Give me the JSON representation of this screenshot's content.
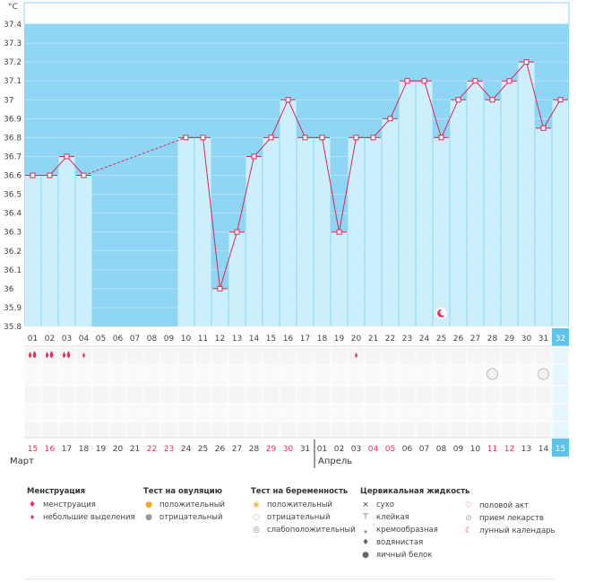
{
  "unit_label": "°C",
  "chart_data": {
    "type": "line",
    "title": "",
    "ylabel": "°C",
    "ylim": [
      35.8,
      37.4
    ],
    "yticks": [
      "35.8",
      "35.9",
      "36",
      "36.1",
      "36.2",
      "36.3",
      "36.4",
      "36.5",
      "36.6",
      "36.7",
      "36.8",
      "36.9",
      "37",
      "37.1",
      "37.2",
      "37.3",
      "37.4"
    ],
    "cycle_days": [
      "01",
      "02",
      "03",
      "04",
      "05",
      "06",
      "07",
      "08",
      "09",
      "10",
      "11",
      "12",
      "13",
      "14",
      "15",
      "16",
      "17",
      "18",
      "19",
      "20",
      "21",
      "22",
      "23",
      "24",
      "25",
      "26",
      "27",
      "28",
      "29",
      "30",
      "31",
      "32"
    ],
    "dates": [
      "15",
      "16",
      "17",
      "18",
      "19",
      "20",
      "21",
      "22",
      "23",
      "24",
      "25",
      "26",
      "27",
      "28",
      "29",
      "30",
      "31",
      "01",
      "02",
      "03",
      "04",
      "05",
      "06",
      "07",
      "08",
      "09",
      "10",
      "11",
      "12",
      "13",
      "14",
      "15"
    ],
    "weekend_dates": [
      0,
      1,
      7,
      8,
      14,
      15,
      20,
      21,
      27,
      28
    ],
    "values": [
      36.6,
      36.6,
      36.7,
      36.6,
      null,
      null,
      null,
      null,
      null,
      36.8,
      36.8,
      36.0,
      36.3,
      36.7,
      36.8,
      37.0,
      36.8,
      36.8,
      36.3,
      36.8,
      36.8,
      36.9,
      37.1,
      37.1,
      36.8,
      37.0,
      37.1,
      37.0,
      37.1,
      37.2,
      36.85,
      37.0
    ],
    "current_day_index": 31,
    "menstruation": [
      1,
      1,
      1,
      2,
      0,
      0,
      0,
      0,
      0,
      0,
      0,
      0,
      0,
      0,
      0,
      0,
      0,
      0,
      0,
      2,
      0,
      0,
      0,
      0,
      0,
      0,
      0,
      0,
      0,
      0,
      0,
      0
    ],
    "pregnancy_negative_days": [
      27,
      30
    ],
    "lunar_day": 24,
    "months": [
      "Март",
      "Апрель"
    ]
  },
  "legend": {
    "menstruation": {
      "title": "Менструация",
      "items": [
        "менструация",
        "небольшие выделения"
      ]
    },
    "ovulation": {
      "title": "Тест на овуляцию",
      "items": [
        "положительный",
        "отрицательный"
      ]
    },
    "pregnancy": {
      "title": "Тест на беременность",
      "items": [
        "положительный",
        "отрицательный",
        "слабоположительный"
      ]
    },
    "cervical": {
      "title": "Цервикальная жидкость",
      "items": [
        "сухо",
        "клейкая",
        "кремообразная",
        "водянистая",
        "яичный белок"
      ]
    },
    "other": {
      "items": [
        "половой акт",
        "прием лекарств",
        "лунный календарь"
      ]
    }
  },
  "colors": {
    "sky": "#8ed6f4",
    "bar": "#cdeefb",
    "line": "#d9295a",
    "current": "#5ec3ec"
  }
}
